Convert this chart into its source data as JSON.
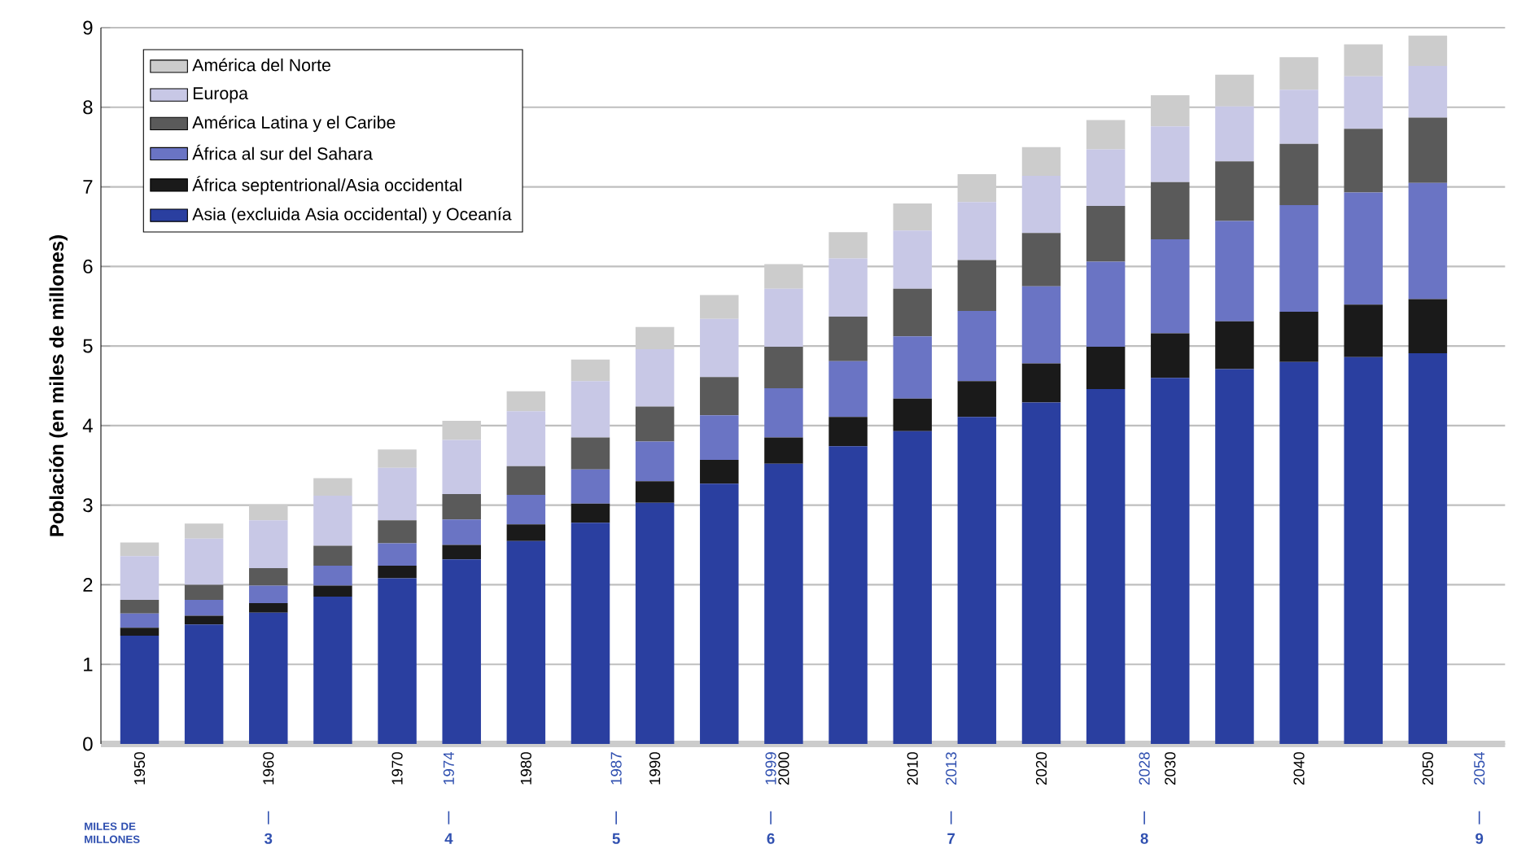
{
  "chart_data": {
    "type": "bar",
    "stacked": true,
    "ylabel": "Población (en miles de millones)",
    "x": [
      1950,
      1955,
      1960,
      1965,
      1970,
      1975,
      1980,
      1985,
      1990,
      1995,
      2000,
      2005,
      2010,
      2015,
      2020,
      2025,
      2030,
      2035,
      2040,
      2045,
      2050
    ],
    "xlim": [
      1947,
      2056
    ],
    "xticks": [
      1950,
      {
        "value": 1960,
        "label": "1960"
      },
      1970,
      {
        "value": 1974,
        "label": "1974"
      },
      1980,
      {
        "value": 1987,
        "label": "1987"
      },
      1990,
      {
        "value": 1999,
        "label": "1999"
      },
      2000,
      2010,
      {
        "value": 2013,
        "label": "2013"
      },
      2020,
      {
        "value": 2028,
        "label": "2028"
      },
      2030,
      2040,
      2050,
      {
        "value": 2054,
        "label": "2054"
      }
    ],
    "annotations": [
      "MILES DE MILLONES",
      "3",
      "4",
      "5",
      "6",
      "7",
      "8",
      "9"
    ],
    "ylim": [
      0,
      9
    ],
    "yticks": [
      0,
      1,
      2,
      3,
      4,
      5,
      6,
      7,
      8,
      9
    ],
    "grid": "y",
    "legend": "top left",
    "series": [
      {
        "name": "Asia (excluida Asia occidental) y Oceanía",
        "color": "#2a3fa0",
        "values": [
          1.36,
          1.5,
          1.65,
          1.85,
          2.08,
          2.32,
          2.55,
          2.78,
          3.03,
          3.27,
          3.52,
          3.74,
          3.93,
          4.11,
          4.29,
          4.46,
          4.6,
          4.71,
          4.8,
          4.86,
          4.91
        ]
      },
      {
        "name": "África septentrional/Asia occidental",
        "color": "#1a1a1a",
        "values": [
          0.1,
          0.11,
          0.12,
          0.14,
          0.16,
          0.18,
          0.21,
          0.24,
          0.27,
          0.3,
          0.33,
          0.37,
          0.41,
          0.45,
          0.49,
          0.53,
          0.56,
          0.6,
          0.63,
          0.66,
          0.68
        ]
      },
      {
        "name": "África al sur del Sahara",
        "color": "#6a74c4",
        "values": [
          0.18,
          0.2,
          0.22,
          0.25,
          0.28,
          0.32,
          0.37,
          0.43,
          0.5,
          0.56,
          0.62,
          0.7,
          0.78,
          0.88,
          0.97,
          1.07,
          1.18,
          1.26,
          1.34,
          1.41,
          1.46
        ]
      },
      {
        "name": "América Latina y el Caribe",
        "color": "#5a5a5a",
        "values": [
          0.17,
          0.19,
          0.22,
          0.25,
          0.29,
          0.32,
          0.36,
          0.4,
          0.44,
          0.48,
          0.52,
          0.56,
          0.6,
          0.64,
          0.67,
          0.7,
          0.72,
          0.75,
          0.77,
          0.8,
          0.82
        ]
      },
      {
        "name": "Europa",
        "color": "#c8c8e6",
        "values": [
          0.55,
          0.58,
          0.6,
          0.63,
          0.66,
          0.68,
          0.69,
          0.71,
          0.72,
          0.73,
          0.73,
          0.73,
          0.73,
          0.73,
          0.72,
          0.71,
          0.7,
          0.69,
          0.68,
          0.66,
          0.65
        ]
      },
      {
        "name": "América del Norte",
        "color": "#cccccc",
        "values": [
          0.17,
          0.19,
          0.2,
          0.22,
          0.23,
          0.24,
          0.25,
          0.27,
          0.28,
          0.3,
          0.31,
          0.33,
          0.34,
          0.35,
          0.36,
          0.37,
          0.39,
          0.4,
          0.41,
          0.4,
          0.38
        ]
      }
    ]
  }
}
